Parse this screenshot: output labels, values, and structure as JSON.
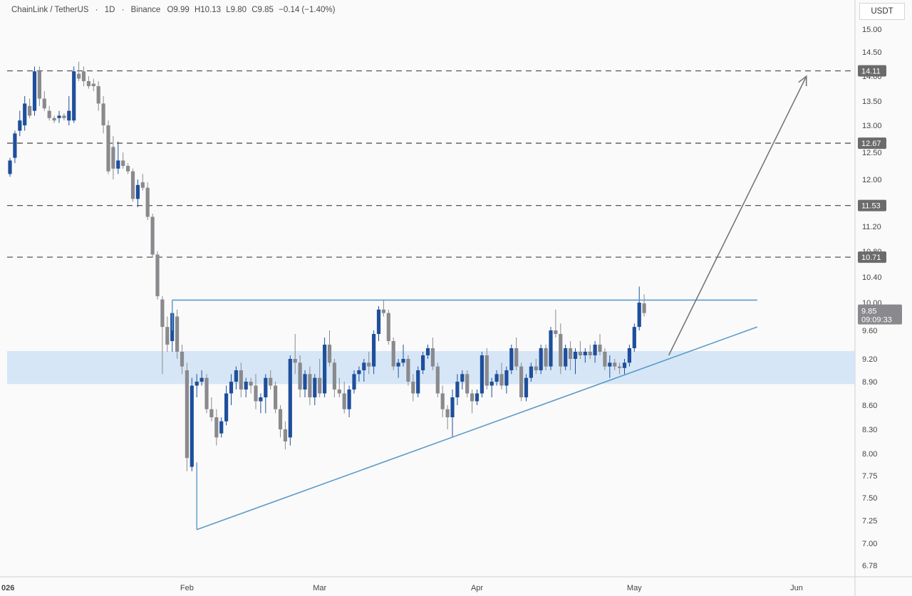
{
  "header": {
    "pair": "ChainLink / TetherUS",
    "interval": "1D",
    "exchange": "Binance",
    "open": "O9.99",
    "high": "H10.13",
    "low": "L9.80",
    "close": "C9.85",
    "change": "−0.14 (−1.40%)"
  },
  "currency": "USDT",
  "current_price": {
    "value": "9.85",
    "countdown": "09:09:33"
  },
  "colors": {
    "bull": "#1e4f9c",
    "bear": "#8a8a8e",
    "zone": "#cfe2f5",
    "pattern_line": "#5b9bc9",
    "level_line": "#555555",
    "arrow": "#777777",
    "level_label_bg": "#6b6b6b"
  },
  "chart_data": {
    "type": "candlestick",
    "y_ticks": [
      "15.00",
      "14.50",
      "14.00",
      "13.50",
      "13.00",
      "12.50",
      "12.00",
      "11.50",
      "11.20",
      "10.80",
      "10.40",
      "10.00",
      "9.60",
      "9.20",
      "8.90",
      "8.60",
      "8.30",
      "8.00",
      "7.75",
      "7.50",
      "7.25",
      "7.00",
      "6.78"
    ],
    "x_ticks": [
      "026",
      "Feb",
      "Mar",
      "Apr",
      "May",
      "Jun"
    ],
    "levels": [
      14.11,
      12.67,
      11.53,
      10.71
    ],
    "level_labels": [
      "14.11",
      "12.67",
      "11.53",
      "10.71"
    ],
    "resistance": 10.04,
    "support_zone": [
      8.87,
      9.31
    ],
    "trendline": {
      "from": {
        "day": 38,
        "price": 7.15
      },
      "to": {
        "day": 152,
        "price": 9.65
      }
    },
    "projection_arrow": {
      "from": {
        "day": 134,
        "price": 9.25
      },
      "to": {
        "day": 162,
        "price": 14.0
      }
    },
    "candles": [
      [
        12.1,
        12.4,
        12.05,
        12.35
      ],
      [
        12.4,
        12.9,
        12.3,
        12.85
      ],
      [
        12.9,
        13.3,
        12.8,
        13.1
      ],
      [
        13.0,
        13.6,
        12.9,
        13.45
      ],
      [
        13.4,
        13.55,
        13.15,
        13.2
      ],
      [
        13.3,
        14.2,
        13.2,
        14.1
      ],
      [
        14.1,
        14.2,
        13.4,
        13.55
      ],
      [
        13.55,
        13.7,
        13.3,
        13.35
      ],
      [
        13.3,
        13.4,
        13.1,
        13.15
      ],
      [
        13.15,
        13.2,
        13.05,
        13.1
      ],
      [
        13.15,
        13.3,
        13.05,
        13.2
      ],
      [
        13.2,
        13.25,
        13.1,
        13.15
      ],
      [
        13.1,
        13.6,
        13.0,
        13.3
      ],
      [
        13.1,
        14.2,
        13.05,
        14.1
      ],
      [
        14.05,
        14.3,
        13.9,
        13.95
      ],
      [
        14.1,
        14.2,
        13.8,
        13.9
      ],
      [
        13.9,
        14.0,
        13.75,
        13.8
      ],
      [
        13.85,
        13.95,
        13.7,
        13.8
      ],
      [
        13.8,
        13.9,
        13.3,
        13.45
      ],
      [
        13.45,
        13.6,
        12.85,
        13.0
      ],
      [
        13.0,
        13.1,
        12.1,
        12.15
      ],
      [
        12.6,
        12.8,
        12.0,
        12.2
      ],
      [
        12.2,
        12.7,
        12.1,
        12.35
      ],
      [
        12.35,
        12.5,
        12.2,
        12.25
      ],
      [
        12.25,
        12.3,
        12.1,
        12.15
      ],
      [
        12.15,
        12.2,
        11.6,
        11.65
      ],
      [
        11.65,
        12.0,
        11.5,
        11.9
      ],
      [
        11.95,
        12.1,
        11.8,
        11.85
      ],
      [
        11.85,
        11.95,
        11.3,
        11.35
      ],
      [
        11.35,
        11.4,
        10.7,
        10.75
      ],
      [
        10.75,
        10.8,
        10.05,
        10.1
      ],
      [
        10.05,
        10.1,
        9.0,
        9.65
      ],
      [
        9.65,
        9.8,
        9.3,
        9.4
      ],
      [
        9.45,
        10.0,
        9.3,
        9.85
      ],
      [
        9.8,
        9.9,
        9.2,
        9.3
      ],
      [
        9.3,
        9.4,
        9.0,
        9.1
      ],
      [
        9.05,
        9.15,
        7.8,
        7.95
      ],
      [
        7.85,
        8.95,
        7.8,
        8.85
      ],
      [
        8.85,
        9.0,
        8.7,
        8.9
      ],
      [
        8.9,
        9.05,
        8.85,
        8.95
      ],
      [
        8.95,
        9.0,
        8.5,
        8.55
      ],
      [
        8.55,
        8.7,
        8.4,
        8.45
      ],
      [
        8.45,
        8.55,
        8.1,
        8.2
      ],
      [
        8.25,
        8.45,
        8.2,
        8.4
      ],
      [
        8.4,
        8.85,
        8.35,
        8.75
      ],
      [
        8.75,
        9.0,
        8.6,
        8.9
      ],
      [
        8.9,
        9.1,
        8.8,
        9.05
      ],
      [
        9.05,
        9.15,
        8.7,
        8.8
      ],
      [
        8.8,
        8.95,
        8.7,
        8.9
      ],
      [
        8.9,
        8.95,
        8.75,
        8.85
      ],
      [
        8.85,
        9.0,
        8.55,
        8.65
      ],
      [
        8.65,
        8.75,
        8.5,
        8.7
      ],
      [
        8.7,
        9.0,
        8.5,
        8.95
      ],
      [
        8.95,
        9.05,
        8.8,
        8.85
      ],
      [
        8.85,
        8.9,
        8.5,
        8.55
      ],
      [
        8.55,
        8.6,
        8.2,
        8.3
      ],
      [
        8.3,
        8.4,
        8.05,
        8.15
      ],
      [
        8.2,
        9.25,
        8.1,
        9.2
      ],
      [
        9.2,
        9.55,
        9.0,
        9.15
      ],
      [
        9.15,
        9.25,
        8.7,
        8.8
      ],
      [
        8.8,
        9.05,
        8.7,
        9.0
      ],
      [
        9.0,
        9.1,
        8.6,
        8.7
      ],
      [
        8.7,
        9.0,
        8.6,
        8.95
      ],
      [
        8.95,
        9.2,
        8.7,
        8.75
      ],
      [
        8.75,
        9.5,
        8.7,
        9.4
      ],
      [
        9.4,
        9.6,
        9.1,
        9.15
      ],
      [
        9.15,
        9.2,
        8.7,
        8.8
      ],
      [
        8.8,
        8.95,
        8.7,
        8.75
      ],
      [
        8.75,
        8.9,
        8.5,
        8.55
      ],
      [
        8.55,
        8.85,
        8.45,
        8.8
      ],
      [
        8.8,
        9.05,
        8.75,
        9.0
      ],
      [
        9.0,
        9.1,
        8.9,
        9.05
      ],
      [
        9.05,
        9.2,
        8.9,
        9.15
      ],
      [
        9.15,
        9.3,
        9.0,
        9.1
      ],
      [
        9.1,
        9.6,
        9.0,
        9.55
      ],
      [
        9.55,
        9.95,
        9.45,
        9.9
      ],
      [
        9.9,
        10.05,
        9.8,
        9.85
      ],
      [
        9.85,
        9.9,
        9.4,
        9.45
      ],
      [
        9.45,
        9.5,
        9.05,
        9.1
      ],
      [
        9.1,
        9.2,
        8.95,
        9.15
      ],
      [
        9.15,
        9.4,
        9.1,
        9.2
      ],
      [
        9.2,
        9.25,
        8.85,
        8.9
      ],
      [
        8.9,
        9.0,
        8.65,
        8.75
      ],
      [
        8.75,
        9.1,
        8.7,
        9.05
      ],
      [
        9.05,
        9.3,
        9.0,
        9.25
      ],
      [
        9.25,
        9.4,
        9.2,
        9.35
      ],
      [
        9.35,
        9.5,
        9.05,
        9.1
      ],
      [
        9.1,
        9.15,
        8.7,
        8.75
      ],
      [
        8.75,
        8.85,
        8.45,
        8.55
      ],
      [
        8.55,
        8.6,
        8.3,
        8.45
      ],
      [
        8.45,
        8.8,
        8.2,
        8.7
      ],
      [
        8.7,
        9.0,
        8.6,
        8.9
      ],
      [
        8.9,
        9.05,
        8.8,
        9.0
      ],
      [
        9.0,
        9.05,
        8.7,
        8.75
      ],
      [
        8.75,
        8.8,
        8.5,
        8.65
      ],
      [
        8.65,
        8.8,
        8.6,
        8.75
      ],
      [
        8.75,
        9.3,
        8.7,
        9.25
      ],
      [
        9.25,
        9.35,
        8.8,
        8.85
      ],
      [
        8.85,
        8.95,
        8.7,
        8.9
      ],
      [
        8.9,
        9.05,
        8.85,
        9.0
      ],
      [
        9.0,
        9.15,
        8.8,
        8.85
      ],
      [
        8.85,
        9.1,
        8.75,
        9.05
      ],
      [
        9.05,
        9.4,
        9.0,
        9.35
      ],
      [
        9.35,
        9.5,
        9.05,
        9.1
      ],
      [
        9.1,
        9.15,
        8.65,
        8.7
      ],
      [
        8.7,
        9.0,
        8.65,
        8.95
      ],
      [
        8.95,
        9.15,
        8.9,
        9.1
      ],
      [
        9.1,
        9.2,
        9.0,
        9.05
      ],
      [
        9.05,
        9.4,
        9.0,
        9.35
      ],
      [
        9.35,
        9.4,
        9.05,
        9.1
      ],
      [
        9.1,
        9.65,
        9.05,
        9.6
      ],
      [
        9.6,
        9.9,
        9.5,
        9.55
      ],
      [
        9.55,
        9.7,
        9.0,
        9.1
      ],
      [
        9.1,
        9.4,
        9.05,
        9.35
      ],
      [
        9.35,
        9.45,
        9.05,
        9.2
      ],
      [
        9.2,
        9.35,
        9.0,
        9.3
      ],
      [
        9.3,
        9.45,
        9.2,
        9.25
      ],
      [
        9.25,
        9.35,
        9.15,
        9.3
      ],
      [
        9.3,
        9.4,
        9.2,
        9.25
      ],
      [
        9.25,
        9.45,
        9.15,
        9.4
      ],
      [
        9.4,
        9.55,
        9.25,
        9.3
      ],
      [
        9.3,
        9.35,
        9.05,
        9.1
      ],
      [
        9.1,
        9.25,
        8.95,
        9.15
      ],
      [
        9.15,
        9.2,
        9.05,
        9.1
      ],
      [
        9.1,
        9.15,
        9.0,
        9.08
      ],
      [
        9.08,
        9.2,
        9.0,
        9.15
      ],
      [
        9.15,
        9.4,
        9.1,
        9.35
      ],
      [
        9.35,
        9.7,
        9.3,
        9.65
      ],
      [
        9.65,
        10.25,
        9.6,
        10.0
      ],
      [
        9.99,
        10.13,
        9.8,
        9.85
      ]
    ]
  }
}
